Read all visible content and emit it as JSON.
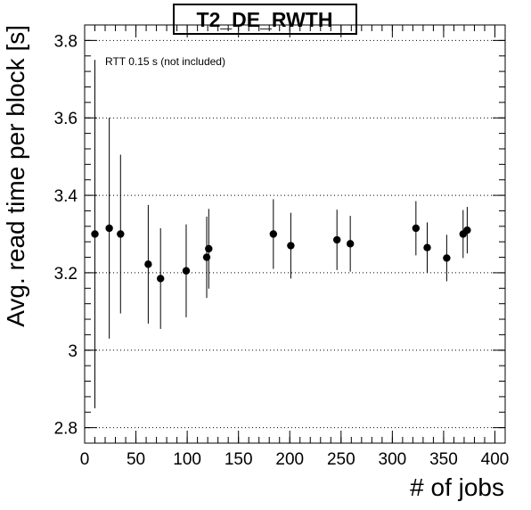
{
  "chart_data": {
    "type": "scatter",
    "title": "T2_DE_RWTH",
    "xlabel": "# of jobs",
    "ylabel": "Avg. read time per block [s]",
    "annotation": "RTT 0.15 s (not included)",
    "xlim": [
      0,
      410
    ],
    "ylim": [
      2.76,
      3.84
    ],
    "x_ticks": [
      0,
      50,
      100,
      150,
      200,
      250,
      300,
      350,
      400
    ],
    "x_tick_labels": [
      "0",
      "50",
      "100",
      "150",
      "200",
      "250",
      "300",
      "350",
      "400"
    ],
    "y_ticks": [
      2.8,
      3.0,
      3.2,
      3.4,
      3.6,
      3.8
    ],
    "y_tick_labels": [
      "2.8",
      "3",
      "3.2",
      "3.4",
      "3.6",
      "3.8"
    ],
    "grid": "horizontal-dotted",
    "points": [
      {
        "x": 10,
        "y": 3.3,
        "err": 0.45
      },
      {
        "x": 24,
        "y": 3.315,
        "err": 0.285
      },
      {
        "x": 35,
        "y": 3.3,
        "err": 0.205
      },
      {
        "x": 62,
        "y": 3.222,
        "err": 0.153
      },
      {
        "x": 74,
        "y": 3.185,
        "err": 0.13
      },
      {
        "x": 99,
        "y": 3.205,
        "err": 0.12
      },
      {
        "x": 119,
        "y": 3.24,
        "err": 0.105
      },
      {
        "x": 121,
        "y": 3.262,
        "err": 0.103
      },
      {
        "x": 184,
        "y": 3.3,
        "err": 0.09
      },
      {
        "x": 201,
        "y": 3.27,
        "err": 0.085
      },
      {
        "x": 246,
        "y": 3.285,
        "err": 0.078
      },
      {
        "x": 259,
        "y": 3.275,
        "err": 0.072
      },
      {
        "x": 323,
        "y": 3.315,
        "err": 0.07
      },
      {
        "x": 334,
        "y": 3.265,
        "err": 0.065
      },
      {
        "x": 353,
        "y": 3.238,
        "err": 0.06
      },
      {
        "x": 369,
        "y": 3.3,
        "err": 0.062
      },
      {
        "x": 373,
        "y": 3.31,
        "err": 0.06
      }
    ]
  }
}
